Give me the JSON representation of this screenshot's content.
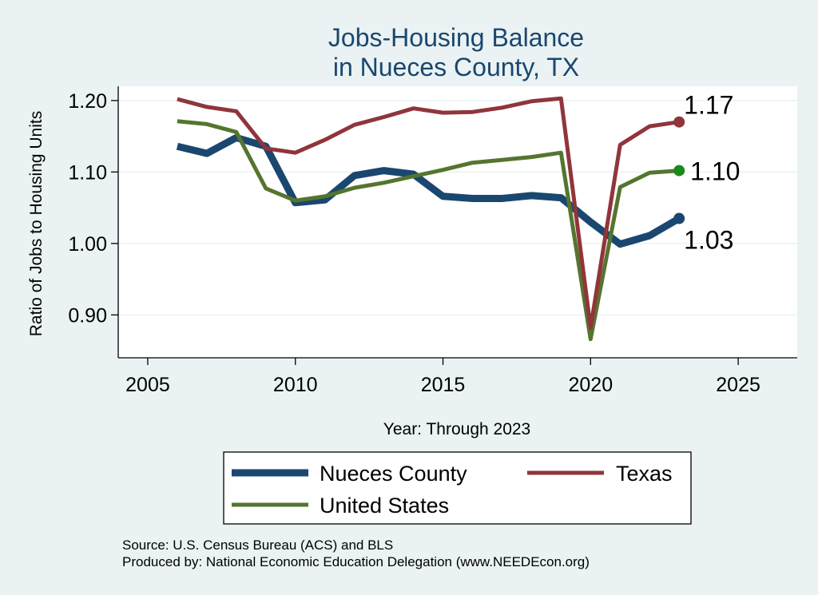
{
  "chart_data": {
    "type": "line",
    "title": [
      "Jobs-Housing Balance",
      "in Nueces County, TX"
    ],
    "xlabel": "Year: Through 2023",
    "ylabel": "Ratio of Jobs to Housing Units",
    "xlim": [
      2004,
      2027
    ],
    "ylim": [
      0.84,
      1.22
    ],
    "xticks": [
      2005,
      2010,
      2015,
      2020,
      2025
    ],
    "yticks": [
      0.9,
      1.0,
      1.1,
      1.2
    ],
    "ytick_labels": [
      "0.90",
      "1.00",
      "1.10",
      "1.20"
    ],
    "grid": true,
    "x": [
      2006,
      2007,
      2008,
      2009,
      2010,
      2011,
      2012,
      2013,
      2014,
      2015,
      2016,
      2017,
      2018,
      2019,
      2020,
      2021,
      2022,
      2023
    ],
    "series": [
      {
        "name": "Nueces County",
        "color": "#1a476f",
        "width": 9,
        "values": [
          1.136,
          1.126,
          1.148,
          1.136,
          1.057,
          1.061,
          1.095,
          1.102,
          1.097,
          1.066,
          1.063,
          1.063,
          1.067,
          1.064,
          1.03,
          0.999,
          1.011,
          1.035
        ],
        "end_label": "1.03",
        "end_label_position": "below"
      },
      {
        "name": "Texas",
        "color": "#90353b",
        "width": 5,
        "values": [
          1.202,
          1.191,
          1.185,
          1.133,
          1.127,
          1.145,
          1.166,
          1.177,
          1.189,
          1.183,
          1.184,
          1.19,
          1.199,
          1.203,
          0.882,
          1.138,
          1.164,
          1.17
        ],
        "end_label": "1.17",
        "end_label_position": "above"
      },
      {
        "name": "United States",
        "color": "#55752f",
        "width": 5,
        "values": [
          1.171,
          1.167,
          1.156,
          1.077,
          1.06,
          1.066,
          1.078,
          1.085,
          1.094,
          1.103,
          1.113,
          1.117,
          1.121,
          1.127,
          0.866,
          1.079,
          1.099,
          1.102
        ],
        "end_label": "1.10",
        "end_label_position": "right"
      }
    ],
    "legend": {
      "placement": "bottom",
      "entries": [
        "Nueces County",
        "Texas",
        "United States"
      ]
    },
    "notes": [
      "Source: U.S. Census Bureau (ACS) and BLS",
      "Produced by: National Economic Education Delegation (www.NEEDEcon.org)"
    ]
  },
  "colors": {
    "page_background": "#eaf2f3",
    "plot_background": "#ffffff",
    "grid": "#eaf2f3",
    "title": "#1a476f"
  }
}
